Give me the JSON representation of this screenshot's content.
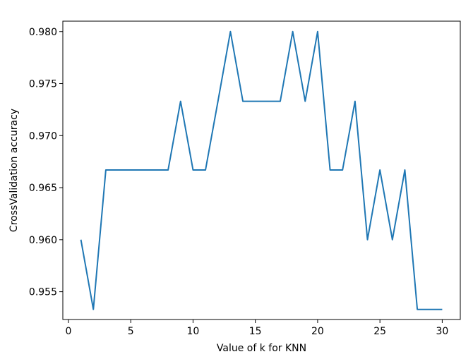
{
  "chart_data": {
    "type": "line",
    "title": "",
    "xlabel": "Value of k for KNN",
    "ylabel": "CrossValidation accuracy",
    "xlim": [
      -0.45,
      31.45
    ],
    "ylim": [
      0.95233,
      0.981
    ],
    "x_ticks": [
      0,
      5,
      10,
      15,
      20,
      25,
      30
    ],
    "x_tick_labels": [
      "0",
      "5",
      "10",
      "15",
      "20",
      "25",
      "30"
    ],
    "y_ticks": [
      0.955,
      0.96,
      0.965,
      0.97,
      0.975,
      0.98
    ],
    "y_tick_labels": [
      "0.955",
      "0.960",
      "0.965",
      "0.970",
      "0.975",
      "0.980"
    ],
    "grid": false,
    "series": [
      {
        "color": "#1f77b4",
        "x": [
          1,
          2,
          3,
          4,
          5,
          6,
          7,
          8,
          9,
          10,
          11,
          12,
          13,
          14,
          15,
          16,
          17,
          18,
          19,
          20,
          21,
          22,
          23,
          24,
          25,
          26,
          27,
          28,
          29,
          30
        ],
        "y": [
          0.96,
          0.9533,
          0.9667,
          0.9667,
          0.9667,
          0.9667,
          0.9667,
          0.9667,
          0.9733,
          0.9667,
          0.9667,
          0.9733,
          0.98,
          0.9733,
          0.9733,
          0.9733,
          0.9733,
          0.98,
          0.9733,
          0.98,
          0.9667,
          0.9667,
          0.9733,
          0.96,
          0.9667,
          0.96,
          0.9667,
          0.9533,
          0.9533,
          0.9533
        ]
      }
    ]
  }
}
